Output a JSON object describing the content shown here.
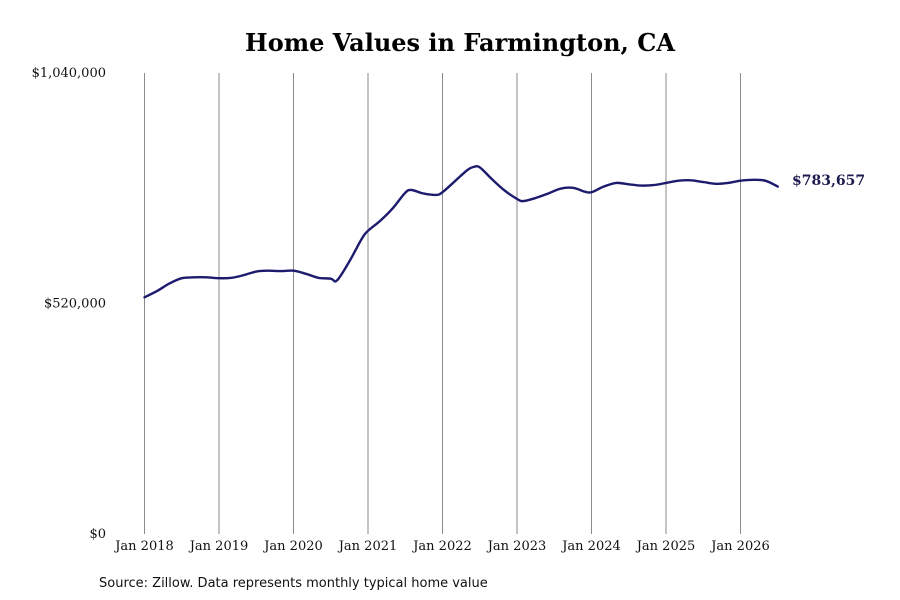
{
  "chart_data": {
    "type": "line",
    "title": "Home Values in Farmington, CA",
    "xlabel": "",
    "ylabel": "",
    "ylim": [
      0,
      1040000
    ],
    "y_ticks": [
      {
        "value": 0,
        "label": "$0"
      },
      {
        "value": 520000,
        "label": "$520,000"
      },
      {
        "value": 1040000,
        "label": "$1,040,000"
      }
    ],
    "x_ticks": [
      {
        "year": 2018,
        "label": "Jan 2018"
      },
      {
        "year": 2019,
        "label": "Jan 2019"
      },
      {
        "year": 2020,
        "label": "Jan 2020"
      },
      {
        "year": 2021,
        "label": "Jan 2021"
      },
      {
        "year": 2022,
        "label": "Jan 2022"
      },
      {
        "year": 2023,
        "label": "Jan 2023"
      },
      {
        "year": 2024,
        "label": "Jan 2024"
      },
      {
        "year": 2025,
        "label": "Jan 2025"
      },
      {
        "year": 2026,
        "label": "Jan 2026"
      }
    ],
    "grid": "vertical",
    "legend": "none",
    "end_label": "$783,657",
    "series": [
      {
        "color": "#1c1b6e",
        "x": [
          "2018-01",
          "2018-03",
          "2018-05",
          "2018-07",
          "2018-09",
          "2018-11",
          "2019-01",
          "2019-03",
          "2019-05",
          "2019-07",
          "2019-09",
          "2019-11",
          "2020-01",
          "2020-03",
          "2020-05",
          "2020-07",
          "2020-08",
          "2020-10",
          "2020-12",
          "2021-01",
          "2021-03",
          "2021-05",
          "2021-07",
          "2021-08",
          "2021-10",
          "2021-12",
          "2022-01",
          "2022-03",
          "2022-05",
          "2022-06",
          "2022-07",
          "2022-09",
          "2022-11",
          "2023-01",
          "2023-02",
          "2023-04",
          "2023-06",
          "2023-08",
          "2023-10",
          "2023-12",
          "2024-01",
          "2024-03",
          "2024-05",
          "2024-07",
          "2024-09",
          "2024-11",
          "2025-01",
          "2025-03",
          "2025-05",
          "2025-07",
          "2025-09",
          "2025-11",
          "2026-01",
          "2026-03",
          "2026-05",
          "2026-07"
        ],
        "y": [
          534000,
          548000,
          565000,
          577000,
          579000,
          579000,
          577000,
          578000,
          584000,
          592000,
          594000,
          593000,
          594000,
          587000,
          578000,
          576000,
          572000,
          615000,
          666000,
          684000,
          707000,
          735000,
          770000,
          776000,
          768000,
          765000,
          771000,
          796000,
          821000,
          828000,
          827000,
          800000,
          775000,
          756000,
          751000,
          758000,
          768000,
          779000,
          781000,
          772000,
          771000,
          784000,
          792000,
          789000,
          786000,
          787000,
          792000,
          797000,
          798000,
          794000,
          790000,
          792000,
          797000,
          799000,
          797000,
          783657
        ]
      }
    ]
  },
  "source_text": "Source: Zillow. Data represents monthly typical home value"
}
